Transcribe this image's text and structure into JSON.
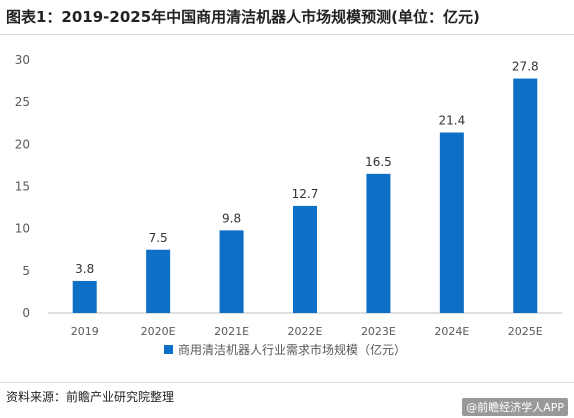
{
  "title": "图表1：2019-2025年中国商用清洁机器人市场规模预测(单位：亿元)",
  "source": "资料来源：前瞻产业研究院整理",
  "watermark": "@前瞻经济学人APP",
  "colors": {
    "bar": "#0e6fc7",
    "axis": "#bfbfbf",
    "text": "#595959"
  },
  "chart_data": {
    "type": "bar",
    "categories": [
      "2019",
      "2020E",
      "2021E",
      "2022E",
      "2023E",
      "2024E",
      "2025E"
    ],
    "series": [
      {
        "name": "商用清洁机器人行业需求市场规模（亿元）",
        "values": [
          3.8,
          7.5,
          9.8,
          12.7,
          16.5,
          21.4,
          27.8
        ]
      }
    ],
    "data_labels": [
      "3.8",
      "7.5",
      "9.8",
      "12.7",
      "16.5",
      "21.4",
      "27.8"
    ],
    "yticks": [
      0,
      5,
      10,
      15,
      20,
      25,
      30
    ],
    "ylim": [
      0,
      30
    ],
    "grid": false,
    "legend_position": "bottom-center"
  }
}
